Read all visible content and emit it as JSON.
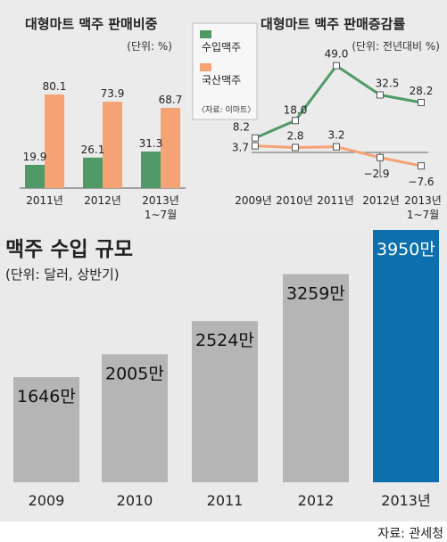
{
  "colors": {
    "import_green": "#4f9a67",
    "domestic_orange": "#f5a375",
    "gray_bar": "#b5b5b5",
    "highlight_blue": "#0d6fae",
    "top_panel_bg": "#ebebeb",
    "bottom_panel_bg": "#eaeaea"
  },
  "chart_data": [
    {
      "type": "bar",
      "title": "대형마트 맥주 판매비중",
      "unit": "(단위: %)",
      "categories": [
        "2011년",
        "2012년",
        "2013년"
      ],
      "category_sublabels": [
        "",
        "",
        "1~7월"
      ],
      "series": [
        {
          "name": "수입맥주",
          "values": [
            19.9,
            26.1,
            31.3
          ]
        },
        {
          "name": "국산맥주",
          "values": [
            80.1,
            73.9,
            68.7
          ]
        }
      ],
      "value_labels": {
        "import": [
          "19.9",
          "26.1",
          "31.3"
        ],
        "domestic": [
          "80.1",
          "73.9",
          "68.7"
        ]
      },
      "ylim": [
        0,
        85
      ],
      "grid": false
    },
    {
      "type": "line",
      "title": "대형마트 맥주 판매증감률",
      "unit": "(단위: 전년대비 %)",
      "categories": [
        "2009년",
        "2010년",
        "2011년",
        "2012년",
        "2013년"
      ],
      "category_sublabels": [
        "",
        "",
        "",
        "",
        "1~7월"
      ],
      "series": [
        {
          "name": "수입맥주",
          "values": [
            8.2,
            18.0,
            49.0,
            32.5,
            28.2
          ]
        },
        {
          "name": "국산맥주",
          "values": [
            3.7,
            2.8,
            3.2,
            -2.9,
            -7.6
          ]
        }
      ],
      "value_labels": {
        "import": [
          "8.2",
          "18.0",
          "49.0",
          "32.5",
          "28.2"
        ],
        "domestic": [
          "3.7",
          "2.8",
          "3.2",
          "−2.9",
          "−7.6"
        ]
      },
      "ylim": [
        -10,
        52
      ],
      "grid": false
    },
    {
      "type": "bar",
      "title": "맥주 수입 규모",
      "unit": "(단위: 달러, 상반기)",
      "categories": [
        "2009",
        "2010",
        "2011",
        "2012",
        "2013년"
      ],
      "values": [
        1646,
        2005,
        2524,
        3259,
        3950
      ],
      "value_labels": [
        "1646만",
        "2005만",
        "2524만",
        "3259만",
        "3950만"
      ],
      "ylim": [
        0,
        4000
      ],
      "grid": false
    }
  ],
  "legend": {
    "import_label": "수입맥주",
    "domestic_label": "국산맥주",
    "source": "〈자료: 이마트〉"
  },
  "source": "자료: 관세청"
}
